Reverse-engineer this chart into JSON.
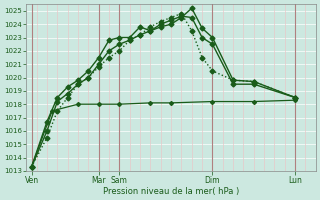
{
  "bg_color": "#cce8e0",
  "grid_color_h": "#ffffff",
  "grid_color_v_minor": "#e8c8c8",
  "grid_color_v_major": "#b08080",
  "line_color": "#1a5c1a",
  "marker_color": "#1a5c1a",
  "xlabel": "Pression niveau de la mer( hPa )",
  "ylim": [
    1013,
    1025.5
  ],
  "yticks": [
    1013,
    1014,
    1015,
    1016,
    1017,
    1018,
    1019,
    1020,
    1021,
    1022,
    1023,
    1024,
    1025
  ],
  "xlim": [
    0,
    28
  ],
  "xtick_major_positions": [
    0.5,
    7,
    9,
    18,
    26
  ],
  "xtick_major_labels": [
    "Ven",
    "Mar",
    "Sam",
    "Dim",
    "Lun"
  ],
  "vline_minor_positions": [
    1,
    2,
    3,
    4,
    5,
    6,
    7,
    8,
    9,
    10,
    11,
    12,
    13,
    14,
    15,
    16,
    17,
    18,
    19,
    20,
    21,
    22,
    23,
    24,
    25,
    26,
    27
  ],
  "vline_major_positions": [
    0.5,
    7,
    9,
    18,
    26
  ],
  "num_x": 28,
  "series": [
    {
      "x": [
        0.5,
        2,
        3,
        4,
        5,
        6,
        7,
        8,
        9,
        10,
        11,
        12,
        13,
        14,
        15,
        16,
        17,
        18,
        20,
        22,
        26
      ],
      "y": [
        1013.3,
        1016.7,
        1018.5,
        1019.3,
        1019.8,
        1020.5,
        1021.5,
        1022.8,
        1023.0,
        1023.0,
        1023.8,
        1023.5,
        1023.8,
        1024.0,
        1024.5,
        1025.2,
        1023.7,
        1023.0,
        1019.8,
        1019.7,
        1018.5
      ],
      "linestyle": "-",
      "linewidth": 1.0,
      "marker": "D",
      "markersize": 2.5
    },
    {
      "x": [
        0.5,
        2,
        3,
        4,
        5,
        6,
        7,
        8,
        9,
        10,
        11,
        12,
        13,
        14,
        15,
        16,
        17,
        18,
        20,
        22,
        26
      ],
      "y": [
        1013.3,
        1016.0,
        1018.2,
        1018.8,
        1019.5,
        1020.0,
        1021.0,
        1022.0,
        1022.5,
        1022.8,
        1023.2,
        1023.5,
        1024.0,
        1024.3,
        1024.6,
        1024.5,
        1023.0,
        1022.5,
        1019.5,
        1019.5,
        1018.5
      ],
      "linestyle": "-",
      "linewidth": 1.0,
      "marker": "D",
      "markersize": 2.5
    },
    {
      "x": [
        0.5,
        2.5,
        5,
        7,
        9,
        12,
        14,
        18,
        22,
        26
      ],
      "y": [
        1013.3,
        1017.5,
        1018.0,
        1018.0,
        1018.0,
        1018.1,
        1018.1,
        1018.2,
        1018.2,
        1018.3
      ],
      "linestyle": "-",
      "linewidth": 0.9,
      "marker": "D",
      "markersize": 2.0
    },
    {
      "x": [
        0.5,
        2,
        3,
        4,
        5,
        6,
        7,
        8,
        9,
        10,
        11,
        12,
        13,
        14,
        15,
        16,
        17,
        18,
        20,
        22,
        26
      ],
      "y": [
        1013.3,
        1015.5,
        1017.5,
        1018.5,
        1019.5,
        1020.0,
        1020.8,
        1021.5,
        1022.0,
        1022.8,
        1023.2,
        1023.8,
        1024.2,
        1024.5,
        1024.8,
        1023.5,
        1021.5,
        1020.5,
        1019.8,
        1019.7,
        1018.5
      ],
      "linestyle": ":",
      "linewidth": 1.0,
      "marker": "D",
      "markersize": 2.5
    }
  ]
}
